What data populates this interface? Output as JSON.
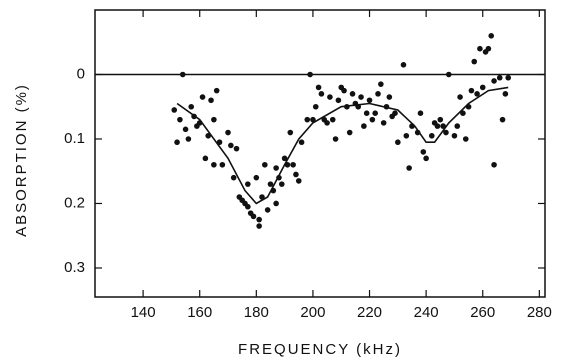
{
  "chart_data": {
    "type": "scatter",
    "x_label": "FREQUENCY (kHz)",
    "y_label": "ABSORPTION (%)",
    "xlim": [
      123,
      282
    ],
    "xticks": [
      140,
      160,
      180,
      200,
      220,
      240,
      260,
      280
    ],
    "ylim": [
      0.345,
      -0.1
    ],
    "yticks": [
      0,
      0.1,
      0.2,
      0.3
    ],
    "hline": 0,
    "series": [
      {
        "color": "#111111",
        "style": "points",
        "x": [
          151,
          152,
          153,
          154,
          155,
          156,
          157,
          158,
          159,
          160,
          161,
          162,
          163,
          164,
          165,
          165,
          166,
          167,
          168,
          170,
          171,
          172,
          173,
          174,
          175,
          176,
          177,
          177,
          178,
          179,
          180,
          181,
          181,
          182,
          183,
          184,
          185,
          186,
          187,
          187,
          188,
          189,
          190,
          191,
          192,
          193,
          194,
          195,
          196,
          198,
          199,
          200,
          201,
          202,
          203,
          204,
          205,
          206,
          207,
          208,
          209,
          210,
          211,
          212,
          213,
          214,
          215,
          216,
          217,
          218,
          219,
          220,
          221,
          222,
          223,
          224,
          225,
          226,
          227,
          228,
          229,
          230,
          232,
          233,
          234,
          235,
          237,
          238,
          239,
          240,
          242,
          243,
          244,
          245,
          246,
          247,
          248,
          250,
          251,
          252,
          253,
          254,
          255,
          256,
          257,
          258,
          259,
          260,
          261,
          262,
          263,
          264,
          264,
          266,
          267,
          268,
          269
        ],
        "values": [
          0.055,
          0.105,
          0.07,
          0.0,
          0.085,
          0.1,
          0.05,
          0.065,
          0.08,
          0.075,
          0.035,
          0.13,
          0.095,
          0.04,
          0.07,
          0.14,
          0.025,
          0.105,
          0.14,
          0.09,
          0.11,
          0.16,
          0.115,
          0.19,
          0.195,
          0.2,
          0.205,
          0.17,
          0.215,
          0.22,
          0.16,
          0.225,
          0.235,
          0.19,
          0.14,
          0.21,
          0.17,
          0.18,
          0.145,
          0.2,
          0.16,
          0.17,
          0.13,
          0.14,
          0.09,
          0.14,
          0.155,
          0.165,
          0.105,
          0.07,
          0.0,
          0.07,
          0.05,
          0.02,
          0.03,
          0.07,
          0.075,
          0.035,
          0.07,
          0.1,
          0.04,
          0.02,
          0.025,
          0.05,
          0.09,
          0.03,
          0.045,
          0.05,
          0.035,
          0.08,
          0.06,
          0.04,
          0.07,
          0.06,
          0.03,
          0.015,
          0.075,
          0.05,
          0.035,
          0.065,
          0.06,
          0.105,
          -0.015,
          0.095,
          0.145,
          0.08,
          0.09,
          0.06,
          0.12,
          0.13,
          0.095,
          0.075,
          0.08,
          0.07,
          0.08,
          0.09,
          0.0,
          0.095,
          0.08,
          0.035,
          0.06,
          0.1,
          0.05,
          0.025,
          -0.02,
          0.03,
          -0.04,
          0.02,
          -0.035,
          -0.04,
          -0.06,
          0.01,
          0.14,
          0.005,
          0.07,
          0.03,
          0.005
        ]
      },
      {
        "color": "#111111",
        "style": "line",
        "x": [
          152,
          160,
          170,
          176,
          180,
          184,
          190,
          195,
          200,
          210,
          220,
          230,
          236,
          240,
          243,
          248,
          255,
          262,
          269
        ],
        "values": [
          0.045,
          0.07,
          0.13,
          0.18,
          0.2,
          0.19,
          0.14,
          0.1,
          0.075,
          0.05,
          0.045,
          0.055,
          0.08,
          0.105,
          0.105,
          0.075,
          0.045,
          0.025,
          0.02
        ]
      }
    ]
  }
}
